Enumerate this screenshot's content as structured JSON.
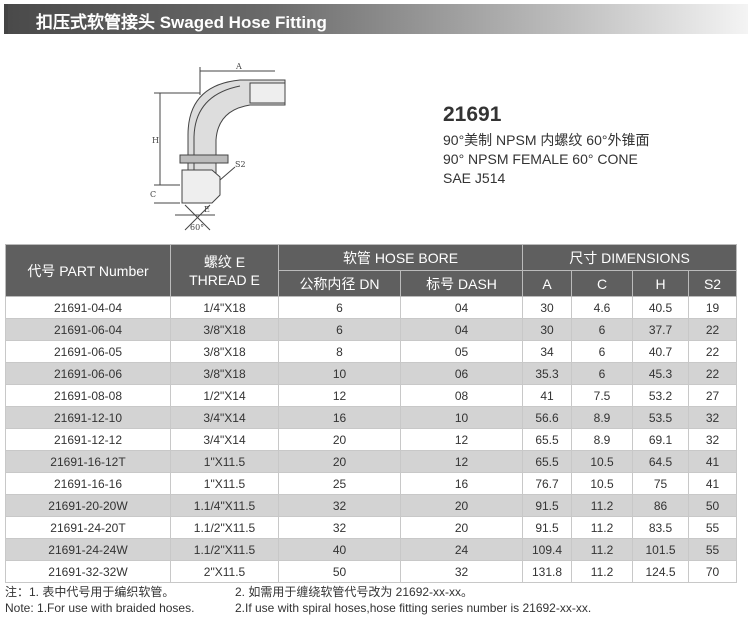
{
  "title": "扣压式软管接头  Swaged Hose Fitting",
  "drawing_labels": {
    "a": "A",
    "h": "H",
    "c": "C",
    "e": "E",
    "s2": "S2",
    "angle": "60°"
  },
  "product": {
    "code": "21691",
    "lines": [
      "90°美制 NPSM 内螺纹 60°外锥面",
      "90° NPSM FEMALE 60° CONE",
      "SAE J514"
    ]
  },
  "table": {
    "headers": {
      "part": "代号 PART Number",
      "thread": "螺纹 E\nTHREAD E",
      "hose_bore": "软管 HOSE BORE",
      "dimensions": "尺寸 DIMENSIONS",
      "dn": "公称内径 DN",
      "dash": "标号 DASH",
      "a": "A",
      "c": "C",
      "h": "H",
      "s2": "S2"
    },
    "rows": [
      [
        "21691-04-04",
        "1/4\"X18",
        "6",
        "04",
        "30",
        "4.6",
        "40.5",
        "19"
      ],
      [
        "21691-06-04",
        "3/8\"X18",
        "6",
        "04",
        "30",
        "6",
        "37.7",
        "22"
      ],
      [
        "21691-06-05",
        "3/8\"X18",
        "8",
        "05",
        "34",
        "6",
        "40.7",
        "22"
      ],
      [
        "21691-06-06",
        "3/8\"X18",
        "10",
        "06",
        "35.3",
        "6",
        "45.3",
        "22"
      ],
      [
        "21691-08-08",
        "1/2\"X14",
        "12",
        "08",
        "41",
        "7.5",
        "53.2",
        "27"
      ],
      [
        "21691-12-10",
        "3/4\"X14",
        "16",
        "10",
        "56.6",
        "8.9",
        "53.5",
        "32"
      ],
      [
        "21691-12-12",
        "3/4\"X14",
        "20",
        "12",
        "65.5",
        "8.9",
        "69.1",
        "32"
      ],
      [
        "21691-16-12T",
        "1\"X11.5",
        "20",
        "12",
        "65.5",
        "10.5",
        "64.5",
        "41"
      ],
      [
        "21691-16-16",
        "1\"X11.5",
        "25",
        "16",
        "76.7",
        "10.5",
        "75",
        "41"
      ],
      [
        "21691-20-20W",
        "1.1/4\"X11.5",
        "32",
        "20",
        "91.5",
        "11.2",
        "86",
        "50"
      ],
      [
        "21691-24-20T",
        "1.1/2\"X11.5",
        "32",
        "20",
        "91.5",
        "11.2",
        "83.5",
        "55"
      ],
      [
        "21691-24-24W",
        "1.1/2\"X11.5",
        "40",
        "24",
        "109.4",
        "11.2",
        "101.5",
        "55"
      ],
      [
        "21691-32-32W",
        "2\"X11.5",
        "50",
        "32",
        "131.8",
        "11.2",
        "124.5",
        "70"
      ]
    ]
  },
  "notes": {
    "cn1": "注：1. 表中代号用于编织软管。",
    "en1": "Note: 1.For use with braided hoses.",
    "cn2": "2. 如需用于缠绕软管代号改为 21692-xx-xx。",
    "en2": "2.If use with spiral hoses,hose fitting series number is 21692-xx-xx."
  }
}
